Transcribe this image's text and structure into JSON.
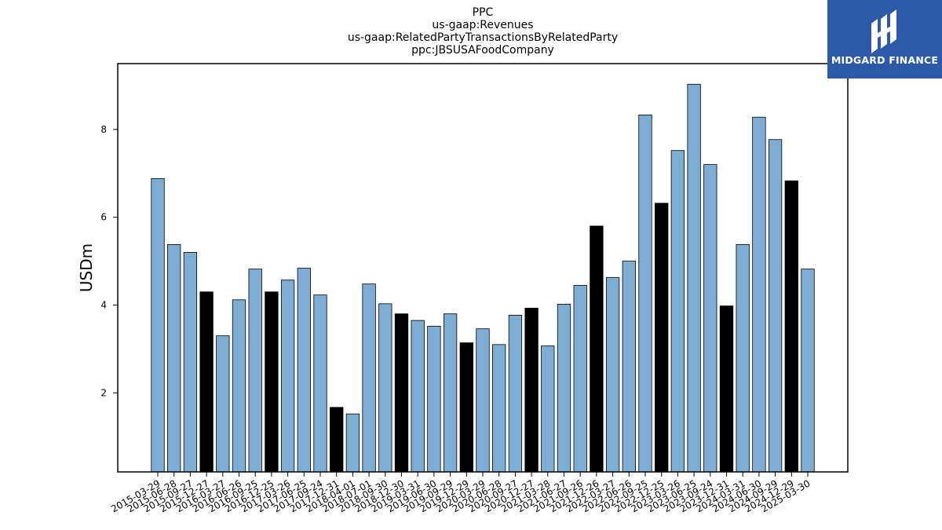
{
  "chart_data": {
    "type": "bar",
    "title_lines": [
      "PPC",
      "us-gaap:Revenues",
      "us-gaap:RelatedPartyTransactionsByRelatedParty",
      "ppc:JBSUSAFoodCompany"
    ],
    "xlabel": "",
    "ylabel": "USDm",
    "ylim": [
      0.2,
      9.5
    ],
    "yticks": [
      2,
      4,
      6,
      8
    ],
    "grid": false,
    "colors": {
      "quarter": "#7eadd4",
      "year_end": "#000000",
      "edge": "#000000"
    },
    "categories": [
      "2015-03-29",
      "2015-06-28",
      "2015-09-27",
      "2015-12-27",
      "2016-03-27",
      "2016-06-26",
      "2016-09-25",
      "2016-12-25",
      "2017-03-26",
      "2017-06-25",
      "2017-09-24",
      "2017-12-31",
      "2018-04-01",
      "2018-07-01",
      "2018-09-30",
      "2018-12-30",
      "2019-03-31",
      "2019-06-30",
      "2019-09-29",
      "2019-12-29",
      "2020-03-29",
      "2020-06-28",
      "2020-09-27",
      "2020-12-27",
      "2021-03-28",
      "2021-06-27",
      "2021-09-26",
      "2021-12-26",
      "2022-03-27",
      "2022-06-26",
      "2022-09-25",
      "2022-12-25",
      "2023-03-26",
      "2023-06-25",
      "2023-09-24",
      "2023-12-31",
      "2024-03-31",
      "2024-06-30",
      "2024-09-29",
      "2024-12-29",
      "2025-03-30"
    ],
    "values": [
      6.88,
      5.38,
      5.2,
      4.3,
      3.3,
      4.12,
      4.82,
      4.3,
      4.57,
      4.84,
      4.23,
      1.67,
      1.52,
      4.48,
      4.03,
      3.8,
      3.65,
      3.52,
      3.8,
      3.14,
      3.46,
      3.1,
      3.77,
      3.93,
      3.07,
      4.02,
      4.45,
      5.8,
      4.63,
      5.0,
      8.33,
      6.32,
      7.52,
      9.03,
      7.2,
      3.98,
      5.38,
      8.28,
      7.77,
      6.83,
      4.82
    ],
    "highlight": [
      false,
      false,
      false,
      true,
      false,
      false,
      false,
      true,
      false,
      false,
      false,
      true,
      false,
      false,
      false,
      true,
      false,
      false,
      false,
      true,
      false,
      false,
      false,
      true,
      false,
      false,
      false,
      true,
      false,
      false,
      false,
      true,
      false,
      false,
      false,
      true,
      false,
      false,
      false,
      true,
      false
    ]
  },
  "logo": {
    "text": "MIDGARD FINANCE"
  }
}
